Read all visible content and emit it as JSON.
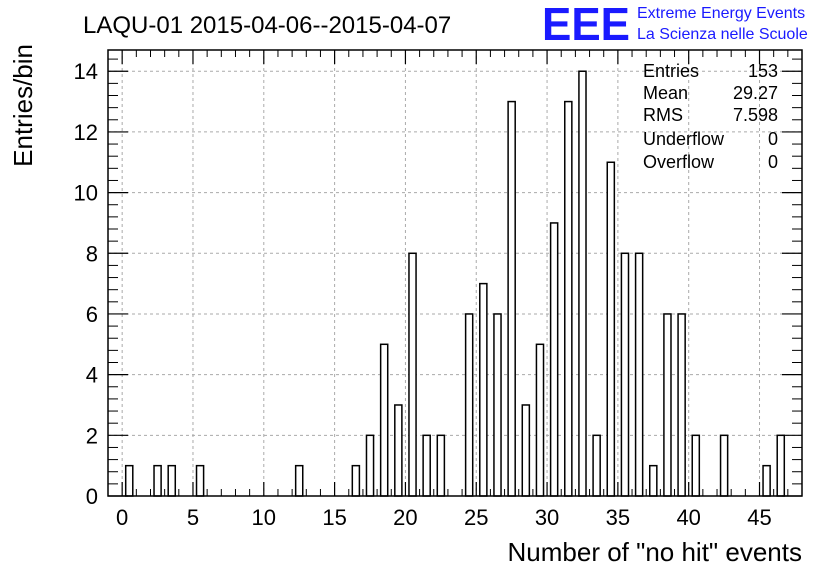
{
  "chart_data": {
    "type": "bar",
    "title": "LAQU-01 2015-04-06--2015-04-07",
    "xlabel": "Number of \"no hit\" events",
    "ylabel": "Entries/bin",
    "xlim": [
      -1,
      48
    ],
    "ylim": [
      0,
      14.7
    ],
    "grid": true,
    "x_ticks": [
      "0",
      "5",
      "10",
      "15",
      "20",
      "25",
      "30",
      "35",
      "40",
      "45"
    ],
    "y_ticks": [
      "0",
      "2",
      "4",
      "6",
      "8",
      "10",
      "12",
      "14"
    ],
    "x": [
      1,
      3,
      4,
      6,
      13,
      17,
      18,
      19,
      20,
      21,
      22,
      23,
      25,
      26,
      27,
      28,
      29,
      30,
      31,
      32,
      33,
      34,
      35,
      36,
      37,
      38,
      39,
      40,
      41,
      43,
      46,
      47
    ],
    "values": [
      1,
      1,
      1,
      1,
      1,
      1,
      2,
      5,
      3,
      8,
      2,
      2,
      6,
      7,
      6,
      13,
      3,
      5,
      9,
      13,
      14,
      2,
      11,
      8,
      8,
      1,
      6,
      6,
      2,
      2,
      1,
      2
    ],
    "stats": [
      {
        "label": "Entries",
        "value": "153"
      },
      {
        "label": "Mean",
        "value": "29.27"
      },
      {
        "label": "RMS",
        "value": "7.598"
      },
      {
        "label": "Underflow",
        "value": "0"
      },
      {
        "label": "Overflow",
        "value": "0"
      }
    ],
    "logo": {
      "text": "EEE",
      "line1": "Extreme Energy Events",
      "line2": "La Scienza nelle Scuole",
      "color": "#1a1aff"
    }
  }
}
